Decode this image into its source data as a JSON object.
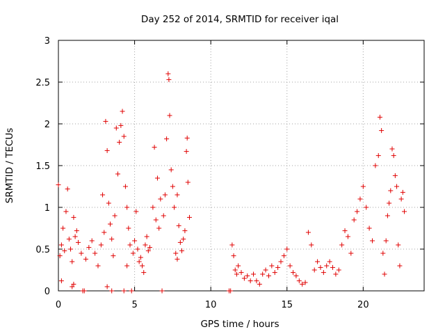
{
  "chart_data": {
    "type": "scatter",
    "title": "Day 252 of 2014, SRMTID for receiver iqal",
    "xlabel": "GPS time / hours",
    "ylabel": "SRMTID / TECUs",
    "xlim": [
      0,
      24
    ],
    "ylim": [
      0,
      3
    ],
    "xticks": [
      0,
      5,
      10,
      15,
      20
    ],
    "yticks": [
      0,
      0.5,
      1,
      1.5,
      2,
      2.5,
      3
    ],
    "xtick_labels": [
      "0",
      "5",
      "10",
      "15",
      "20"
    ],
    "ytick_labels": [
      "0",
      "0.5",
      "1",
      "1.5",
      "2",
      "2.5",
      "3"
    ],
    "grid": true,
    "marker": "+",
    "color": "#e00000",
    "series": [
      {
        "name": "SRMTID",
        "points": [
          [
            0.0,
            1.27
          ],
          [
            0.1,
            0.42
          ],
          [
            0.2,
            0.55
          ],
          [
            0.3,
            0.75
          ],
          [
            0.4,
            0.48
          ],
          [
            0.5,
            0.95
          ],
          [
            0.6,
            1.22
          ],
          [
            0.7,
            0.62
          ],
          [
            0.8,
            0.5
          ],
          [
            0.9,
            0.35
          ],
          [
            1.0,
            0.88
          ],
          [
            1.1,
            0.65
          ],
          [
            1.2,
            0.72
          ],
          [
            1.3,
            0.58
          ],
          [
            0.2,
            0.12
          ],
          [
            0.9,
            0.05
          ],
          [
            1.0,
            0.08
          ],
          [
            1.6,
            0.0
          ],
          [
            1.7,
            0.0
          ],
          [
            1.5,
            0.45
          ],
          [
            1.8,
            0.38
          ],
          [
            2.0,
            0.52
          ],
          [
            2.2,
            0.6
          ],
          [
            2.4,
            0.45
          ],
          [
            2.6,
            0.3
          ],
          [
            2.8,
            0.55
          ],
          [
            2.9,
            1.15
          ],
          [
            3.0,
            0.7
          ],
          [
            3.1,
            2.03
          ],
          [
            3.2,
            1.68
          ],
          [
            3.3,
            1.05
          ],
          [
            3.4,
            0.8
          ],
          [
            3.5,
            0.62
          ],
          [
            3.6,
            0.42
          ],
          [
            3.7,
            0.9
          ],
          [
            3.8,
            1.95
          ],
          [
            3.9,
            1.4
          ],
          [
            4.0,
            1.78
          ],
          [
            4.1,
            1.98
          ],
          [
            4.2,
            2.15
          ],
          [
            4.3,
            1.85
          ],
          [
            4.4,
            1.25
          ],
          [
            4.5,
            1.0
          ],
          [
            4.6,
            0.75
          ],
          [
            4.7,
            0.55
          ],
          [
            3.2,
            0.05
          ],
          [
            3.5,
            0.0
          ],
          [
            4.3,
            0.0
          ],
          [
            4.8,
            0.0
          ],
          [
            4.5,
            0.3
          ],
          [
            4.9,
            0.45
          ],
          [
            5.0,
            0.6
          ],
          [
            5.1,
            0.95
          ],
          [
            5.2,
            0.5
          ],
          [
            5.3,
            0.35
          ],
          [
            5.4,
            0.4
          ],
          [
            5.5,
            0.3
          ],
          [
            5.6,
            0.22
          ],
          [
            5.7,
            0.55
          ],
          [
            5.8,
            0.65
          ],
          [
            5.9,
            0.48
          ],
          [
            6.0,
            0.52
          ],
          [
            6.2,
            1.0
          ],
          [
            6.3,
            1.72
          ],
          [
            6.4,
            0.85
          ],
          [
            6.5,
            1.35
          ],
          [
            6.6,
            0.75
          ],
          [
            6.7,
            1.1
          ],
          [
            6.8,
            0.0
          ],
          [
            6.9,
            0.9
          ],
          [
            7.0,
            1.15
          ],
          [
            7.1,
            1.82
          ],
          [
            7.2,
            2.6
          ],
          [
            7.25,
            2.53
          ],
          [
            7.3,
            2.1
          ],
          [
            7.4,
            1.45
          ],
          [
            7.5,
            1.25
          ],
          [
            7.6,
            1.0
          ],
          [
            7.7,
            0.45
          ],
          [
            7.8,
            1.15
          ],
          [
            7.9,
            0.78
          ],
          [
            8.0,
            0.58
          ],
          [
            8.1,
            0.48
          ],
          [
            8.2,
            0.62
          ],
          [
            8.3,
            0.72
          ],
          [
            8.4,
            1.67
          ],
          [
            8.45,
            1.83
          ],
          [
            8.5,
            1.3
          ],
          [
            8.6,
            0.88
          ],
          [
            7.8,
            0.38
          ],
          [
            11.2,
            0.0
          ],
          [
            11.3,
            0.0
          ],
          [
            11.4,
            0.55
          ],
          [
            11.5,
            0.42
          ],
          [
            11.6,
            0.25
          ],
          [
            11.7,
            0.2
          ],
          [
            11.8,
            0.3
          ],
          [
            12.0,
            0.22
          ],
          [
            12.2,
            0.15
          ],
          [
            12.4,
            0.18
          ],
          [
            12.6,
            0.12
          ],
          [
            12.8,
            0.2
          ],
          [
            13.0,
            0.12
          ],
          [
            13.2,
            0.08
          ],
          [
            13.4,
            0.2
          ],
          [
            13.6,
            0.25
          ],
          [
            13.8,
            0.18
          ],
          [
            14.0,
            0.3
          ],
          [
            14.2,
            0.22
          ],
          [
            14.4,
            0.28
          ],
          [
            14.6,
            0.35
          ],
          [
            14.8,
            0.42
          ],
          [
            15.0,
            0.5
          ],
          [
            15.2,
            0.3
          ],
          [
            15.4,
            0.22
          ],
          [
            15.6,
            0.18
          ],
          [
            15.8,
            0.12
          ],
          [
            16.0,
            0.08
          ],
          [
            16.2,
            0.1
          ],
          [
            16.4,
            0.7
          ],
          [
            16.6,
            0.55
          ],
          [
            16.8,
            0.25
          ],
          [
            17.0,
            0.35
          ],
          [
            17.2,
            0.28
          ],
          [
            17.4,
            0.22
          ],
          [
            17.6,
            0.3
          ],
          [
            17.8,
            0.35
          ],
          [
            18.0,
            0.28
          ],
          [
            18.2,
            0.2
          ],
          [
            18.4,
            0.25
          ],
          [
            18.6,
            0.55
          ],
          [
            18.8,
            0.72
          ],
          [
            19.0,
            0.65
          ],
          [
            19.2,
            0.45
          ],
          [
            19.4,
            0.85
          ],
          [
            19.6,
            0.95
          ],
          [
            19.8,
            1.1
          ],
          [
            20.0,
            1.25
          ],
          [
            20.2,
            1.0
          ],
          [
            20.4,
            0.75
          ],
          [
            20.6,
            0.6
          ],
          [
            20.8,
            1.5
          ],
          [
            21.0,
            1.62
          ],
          [
            21.1,
            2.08
          ],
          [
            21.2,
            1.92
          ],
          [
            21.3,
            0.45
          ],
          [
            21.4,
            0.2
          ],
          [
            21.5,
            0.6
          ],
          [
            21.6,
            0.9
          ],
          [
            21.7,
            1.05
          ],
          [
            21.8,
            1.2
          ],
          [
            21.9,
            1.7
          ],
          [
            22.0,
            1.62
          ],
          [
            22.1,
            1.38
          ],
          [
            22.2,
            1.25
          ],
          [
            22.3,
            0.55
          ],
          [
            22.4,
            0.3
          ],
          [
            22.5,
            1.1
          ],
          [
            22.6,
            1.18
          ],
          [
            22.7,
            0.95
          ]
        ]
      }
    ]
  }
}
